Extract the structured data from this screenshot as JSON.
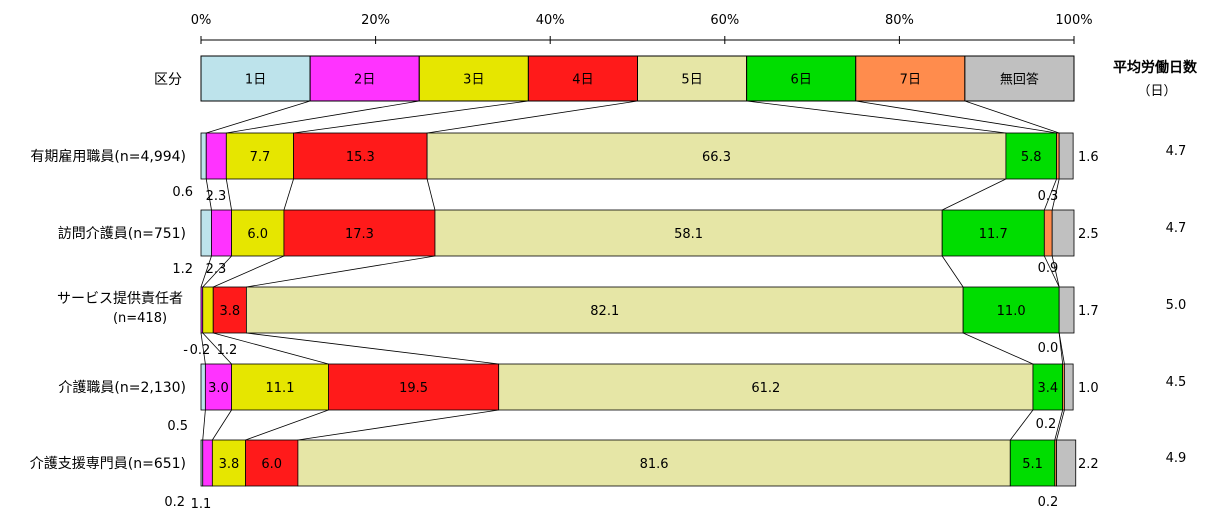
{
  "chart_data": {
    "type": "bar",
    "orientation": "horizontal",
    "stacked": "percent",
    "xlim": [
      0,
      100
    ],
    "x_ticks": [
      "0%",
      "20%",
      "40%",
      "60%",
      "80%",
      "100%"
    ],
    "legend": {
      "row_label": "区分",
      "entries": [
        "1日",
        "2日",
        "3日",
        "4日",
        "5日",
        "6日",
        "7日",
        "無回答"
      ]
    },
    "right_header": [
      "平均労働日数",
      "（日）"
    ],
    "series_colors": [
      "#BDE3EB",
      "#FF33FF",
      "#E6E600",
      "#FF1A1A",
      "#E6E6A6",
      "#00DD00",
      "#FF8C4D",
      "#C0C0C0"
    ],
    "categories": [
      {
        "label": "有期雇用職員(n=4,994)",
        "values": [
          0.6,
          2.3,
          7.7,
          15.3,
          66.3,
          5.8,
          0.3,
          1.6
        ],
        "average": "4.7"
      },
      {
        "label": "訪問介護員(n=751)",
        "values": [
          1.2,
          2.3,
          6.0,
          17.3,
          58.1,
          11.7,
          0.9,
          2.5
        ],
        "average": "4.7"
      },
      {
        "label": "サービス提供責任者",
        "label_line2": "(n=418)",
        "values": [
          0,
          0.2,
          1.2,
          3.8,
          82.1,
          11.0,
          0.0,
          1.7
        ],
        "average": "5.0"
      },
      {
        "label": "介護職員(n=2,130)",
        "values": [
          0.5,
          3.0,
          11.1,
          19.5,
          61.2,
          3.4,
          0.2,
          1.0
        ],
        "average": "4.5"
      },
      {
        "label": "介護支援専門員(n=651)",
        "values": [
          0.2,
          1.1,
          3.8,
          6.0,
          81.6,
          5.1,
          0.2,
          2.2
        ],
        "average": "4.9"
      }
    ],
    "outside_labels": [
      {
        "row": 0,
        "texts": [
          "0.6",
          "2.3",
          "0.3",
          "1.6"
        ]
      },
      {
        "row": 1,
        "texts": [
          "1.2",
          "2.3",
          "0.9",
          "2.5"
        ]
      },
      {
        "row": 2,
        "texts": [
          "-",
          "0.2",
          "1.2",
          "0.0",
          "1.7"
        ]
      },
      {
        "row": 3,
        "texts": [
          "0.5",
          "0.2",
          "1.0"
        ]
      },
      {
        "row": 4,
        "texts": [
          "0.2",
          "1.1",
          "0.2",
          "2.2"
        ]
      }
    ]
  }
}
